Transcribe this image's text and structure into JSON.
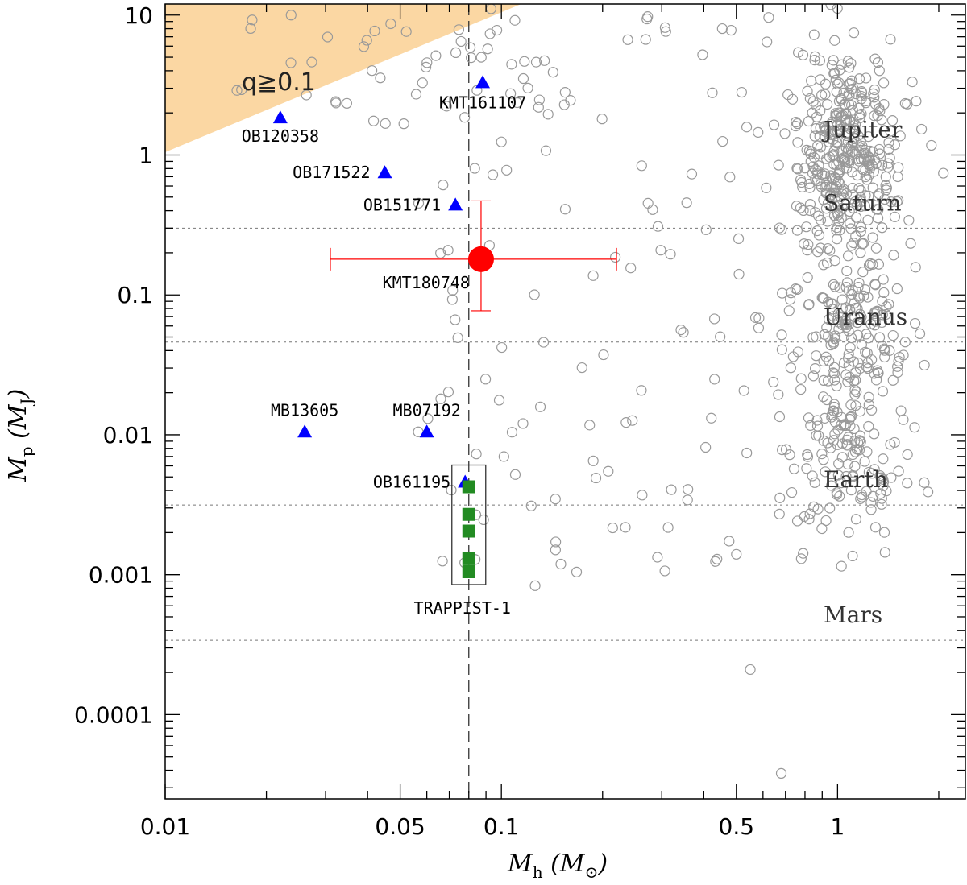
{
  "chart_data": {
    "type": "scatter",
    "xscale": "log",
    "yscale": "log",
    "xlim": [
      0.01,
      2.4
    ],
    "ylim": [
      2.5e-05,
      12
    ],
    "xlabel": "M",
    "xlabel_sub": "h",
    "xlabel_unit_open": " (M",
    "xlabel_unit_sub": "⊙",
    "xlabel_unit_close": ")",
    "ylabel": "M",
    "ylabel_sub": "p",
    "ylabel_unit_open": " (M",
    "ylabel_unit_sub": "J",
    "ylabel_unit_close": ")",
    "xticks": [
      {
        "value": 0.01,
        "label": "0.01"
      },
      {
        "value": 0.05,
        "label": "0.05"
      },
      {
        "value": 0.1,
        "label": "0.1"
      },
      {
        "value": 0.5,
        "label": "0.5"
      },
      {
        "value": 1,
        "label": "1"
      }
    ],
    "yticks": [
      {
        "value": 10,
        "label": "10"
      },
      {
        "value": 1,
        "label": "1"
      },
      {
        "value": 0.1,
        "label": "0.1"
      },
      {
        "value": 0.01,
        "label": "0.01"
      },
      {
        "value": 0.001,
        "label": "0.001"
      },
      {
        "value": 0.0001,
        "label": "0.0001"
      }
    ],
    "region": {
      "label": "q≧0.1",
      "q": 0.1,
      "color": "#fbd7a3",
      "label_at": [
        0.016,
        3.6
      ]
    },
    "vline": {
      "x": 0.08
    },
    "reference_lines": [
      {
        "name": "Jupiter",
        "mass": 1.0
      },
      {
        "name": "Saturn",
        "mass": 0.3
      },
      {
        "name": "Uranus",
        "mass": 0.046
      },
      {
        "name": "Earth",
        "mass": 0.00315
      },
      {
        "name": "Mars",
        "mass": 0.00034
      }
    ],
    "highlight": {
      "name": "KMT180748",
      "host_mass": 0.087,
      "planet_mass": 0.18,
      "host_mass_err": [
        0.031,
        0.22
      ],
      "planet_mass_err": [
        0.077,
        0.47
      ],
      "color": "#ff0000"
    },
    "low_mass_host_planets": [
      {
        "name": "OB120358",
        "host_mass": 0.022,
        "planet_mass": 1.85,
        "label_dx": "0",
        "label_dy": "30"
      },
      {
        "name": "KMT161107",
        "host_mass": 0.088,
        "planet_mass": 3.3,
        "label_dx": "0",
        "label_dy": "32"
      },
      {
        "name": "OB171522",
        "host_mass": 0.045,
        "planet_mass": 0.75,
        "label_dx": "-80",
        "label_dy": "7"
      },
      {
        "name": "OB151771",
        "host_mass": 0.073,
        "planet_mass": 0.44,
        "label_dx": "-90",
        "label_dy": "7"
      },
      {
        "name": "MB13605",
        "host_mass": 0.026,
        "planet_mass": 0.0105,
        "label_dx": "0",
        "label_dy": "-20"
      },
      {
        "name": "MB07192",
        "host_mass": 0.06,
        "planet_mass": 0.0105,
        "label_dx": "0",
        "label_dy": "-20"
      },
      {
        "name": "OB161195",
        "host_mass": 0.078,
        "planet_mass": 0.0046,
        "label_dx": "-80",
        "label_dy": "7"
      }
    ],
    "trappist1": {
      "label": "TRAPPIST-1",
      "host_mass": 0.08,
      "planet_masses": [
        0.00425,
        0.0027,
        0.00205,
        0.0013,
        0.00105
      ],
      "color": "#228b22"
    },
    "known_planets_color": "#999999"
  }
}
